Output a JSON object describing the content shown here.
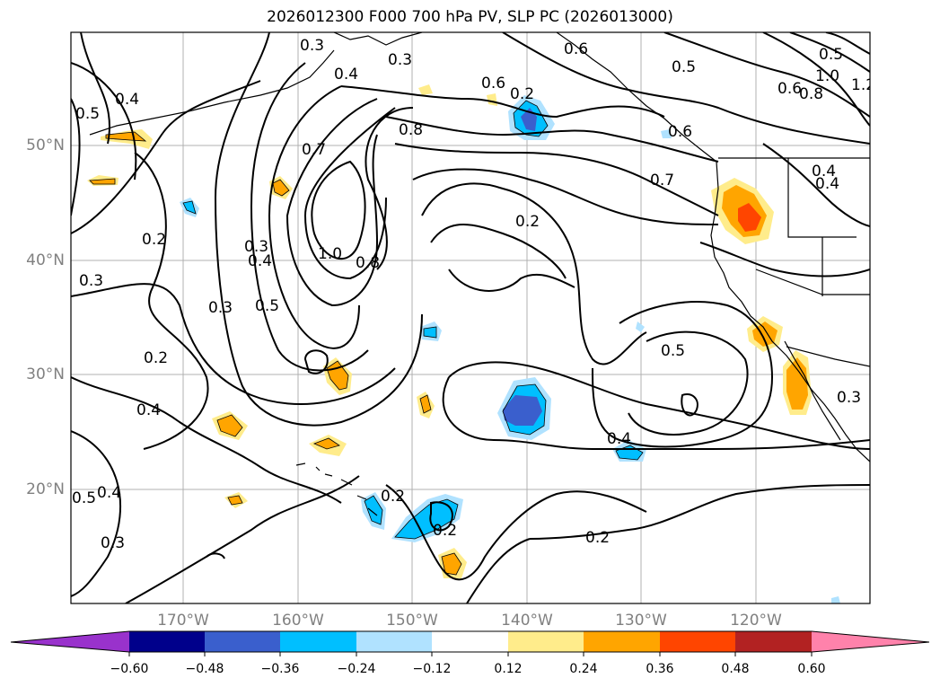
{
  "title": "2026012300 F000 700 hPa PV, SLP PC (2026013000)",
  "map": {
    "lon_labels": [
      "170°W",
      "160°W",
      "150°W",
      "140°W",
      "130°W",
      "120°W"
    ],
    "lat_labels": [
      "50°N",
      "40°N",
      "30°N",
      "20°N"
    ],
    "contour_labels": [
      "0.5",
      "0.4",
      "0.3",
      "0.2",
      "0.3",
      "0.2",
      "0.4",
      "0.5",
      "0.3",
      "0.4",
      "0.3",
      "0.4",
      "0.7",
      "1.0",
      "0.8",
      "0.8",
      "0.6",
      "0.6",
      "0.3",
      "0.4",
      "0.5",
      "0.3",
      "0.2",
      "0.7",
      "0.6",
      "0.5",
      "0.6",
      "0.8",
      "1.0",
      "1.2",
      "0.4",
      "0.5",
      "0.4",
      "0.3",
      "0.2",
      "0.2",
      "0.2",
      "0.2",
      "0.5",
      "0.4"
    ]
  },
  "colorbar": {
    "colors": [
      "#9932CC",
      "#00008B",
      "#3A5FCD",
      "#00BFFF",
      "#B0E2FF",
      "#FFFFFF",
      "#FFEC8B",
      "#FFA500",
      "#FF4500",
      "#B22222",
      "#FF82AB"
    ],
    "ticks": [
      "−0.60",
      "−0.48",
      "−0.36",
      "−0.24",
      "−0.12",
      "0.12",
      "0.24",
      "0.36",
      "0.48",
      "0.60"
    ]
  }
}
